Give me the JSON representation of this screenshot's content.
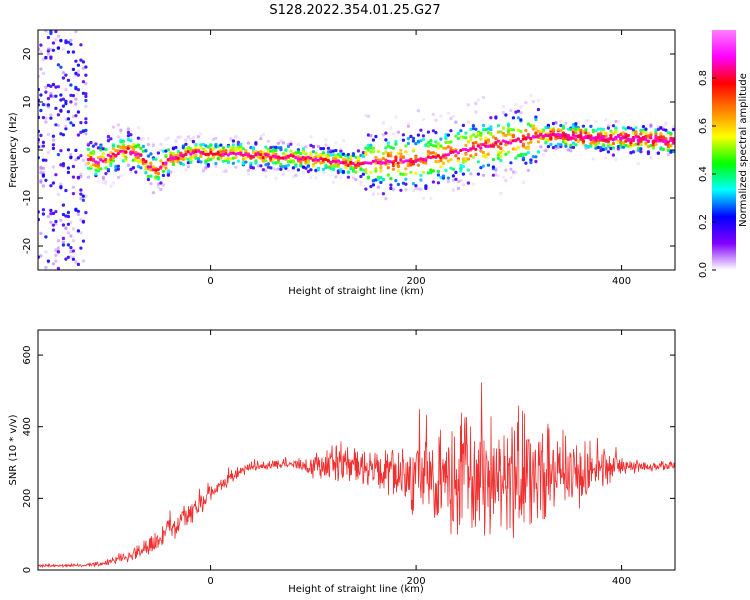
{
  "title": "S128.2022.354.01.25.G27",
  "colors": {
    "snr_line": "#f03030",
    "axis": "#000000",
    "background": "#ffffff"
  },
  "chart_data": [
    {
      "type": "heatmap",
      "xlabel": "Height of straight line (km)",
      "ylabel": "Frequency (Hz)",
      "xlim": [
        -168,
        452
      ],
      "ylim": [
        -25,
        25
      ],
      "xticks": [
        0,
        200,
        400
      ],
      "yticks": [
        -20,
        -10,
        0,
        10,
        20
      ],
      "colorbar": {
        "label": "Normalized spectral amplitude",
        "range": [
          0,
          1
        ],
        "ticks": [
          "0.0",
          "0.2",
          "0.4",
          "0.6",
          "0.8"
        ],
        "colormap": [
          "#ffffff",
          "#8000ff",
          "#0000ff",
          "#00ffff",
          "#00ff00",
          "#ffff00",
          "#ff8000",
          "#ff0000",
          "#ff00ff",
          "#ff80ff"
        ]
      },
      "ridge": {
        "x": [
          -130,
          -110,
          -95,
          -80,
          -70,
          -55,
          -40,
          -20,
          0,
          20,
          40,
          60,
          80,
          100,
          120,
          140,
          160,
          180,
          200,
          220,
          240,
          260,
          280,
          300,
          320,
          340,
          360,
          380,
          400,
          420,
          440,
          452
        ],
        "y": [
          -2,
          -2.5,
          -1,
          0,
          -1,
          -4.5,
          -2,
          -0.5,
          -0.8,
          -1,
          -1,
          -1.5,
          -1.5,
          -2,
          -2.5,
          -3,
          -2.5,
          -2.5,
          -2,
          -1.5,
          -0.5,
          0.5,
          1.5,
          2,
          3,
          3,
          2.8,
          2.5,
          2.5,
          2.2,
          2,
          1.5
        ]
      },
      "noise_band_x": [
        -168,
        -120
      ]
    },
    {
      "type": "line",
      "xlabel": "Height of straight line (km)",
      "ylabel": "SNR (10 * v/v)",
      "xlim": [
        -168,
        452
      ],
      "ylim": [
        0,
        670
      ],
      "xticks": [
        0,
        200,
        400
      ],
      "yticks": [
        0,
        200,
        400,
        600
      ],
      "envelope": {
        "x": [
          -168,
          -140,
          -120,
          -100,
          -80,
          -60,
          -40,
          -20,
          0,
          20,
          40,
          60,
          80,
          100,
          120,
          140,
          160,
          180,
          200,
          220,
          240,
          260,
          280,
          300,
          320,
          340,
          360,
          380,
          400,
          420,
          440,
          452
        ],
        "mean": [
          12,
          12,
          14,
          22,
          40,
          70,
          110,
          160,
          210,
          260,
          290,
          295,
          295,
          290,
          300,
          290,
          275,
          260,
          255,
          255,
          260,
          265,
          270,
          270,
          265,
          270,
          275,
          285,
          290,
          290,
          290,
          290
        ],
        "spread": [
          5,
          5,
          6,
          10,
          20,
          35,
          40,
          40,
          30,
          20,
          15,
          15,
          15,
          40,
          70,
          70,
          60,
          90,
          130,
          170,
          210,
          220,
          220,
          200,
          170,
          150,
          120,
          70,
          30,
          18,
          15,
          12
        ]
      }
    }
  ]
}
